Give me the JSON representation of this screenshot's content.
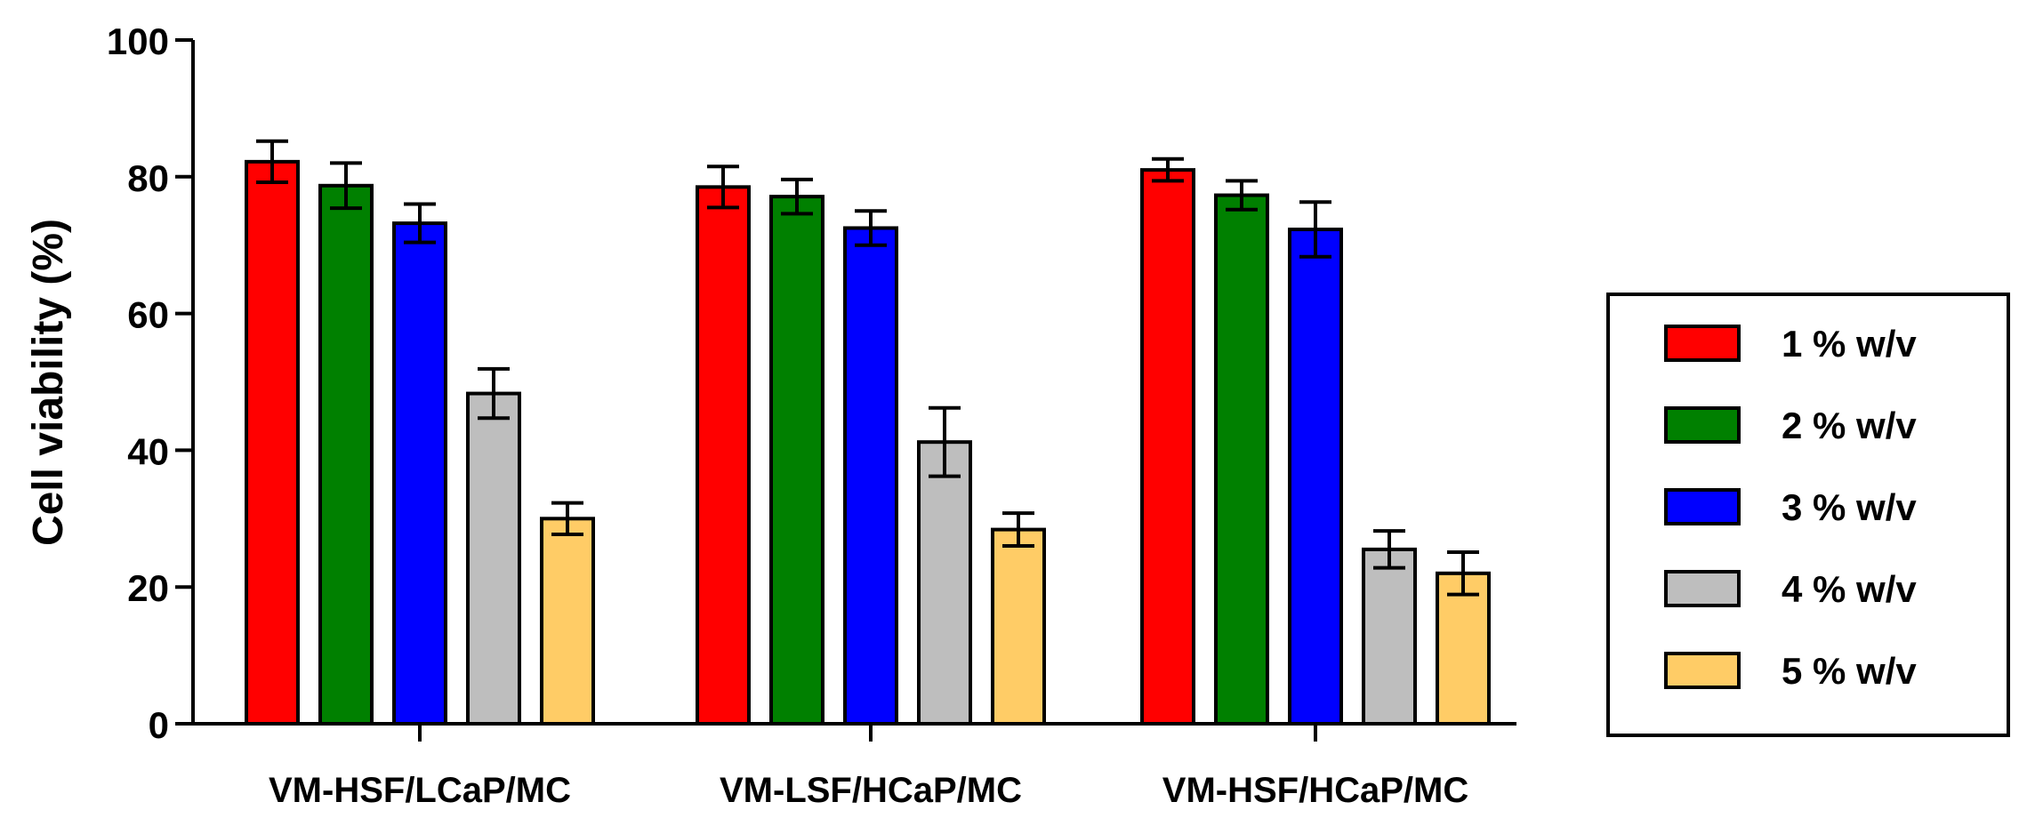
{
  "chart_data": {
    "type": "bar",
    "title": "",
    "xlabel": "",
    "ylabel": "Cell viability (%)",
    "ylim": [
      0,
      100
    ],
    "yticks": [
      "0",
      "20",
      "40",
      "60",
      "80",
      "100"
    ],
    "categories": [
      "VM-HSF/LCaP/MC",
      "VM-LSF/HCaP/MC",
      "VM-HSF/HCaP/MC"
    ],
    "series": [
      {
        "name": "1 % w/v",
        "color": "#ff0000",
        "values": [
          82.2,
          78.5,
          81.0
        ],
        "errors": [
          3.0,
          3.0,
          1.6
        ]
      },
      {
        "name": "2 % w/v",
        "color": "#008000",
        "values": [
          78.7,
          77.1,
          77.3
        ],
        "errors": [
          3.3,
          2.5,
          2.1
        ]
      },
      {
        "name": "3 % w/v",
        "color": "#0000ff",
        "values": [
          73.2,
          72.5,
          72.3
        ],
        "errors": [
          2.8,
          2.5,
          4.0
        ]
      },
      {
        "name": "4 % w/v",
        "color": "#bebebe",
        "values": [
          48.3,
          41.2,
          25.5
        ],
        "errors": [
          3.6,
          5.0,
          2.7
        ]
      },
      {
        "name": "5 % w/v",
        "color": "#ffcc66",
        "values": [
          30.0,
          28.4,
          22.0
        ],
        "errors": [
          2.3,
          2.4,
          3.1
        ]
      }
    ],
    "grid": false,
    "legend_position": "right"
  }
}
